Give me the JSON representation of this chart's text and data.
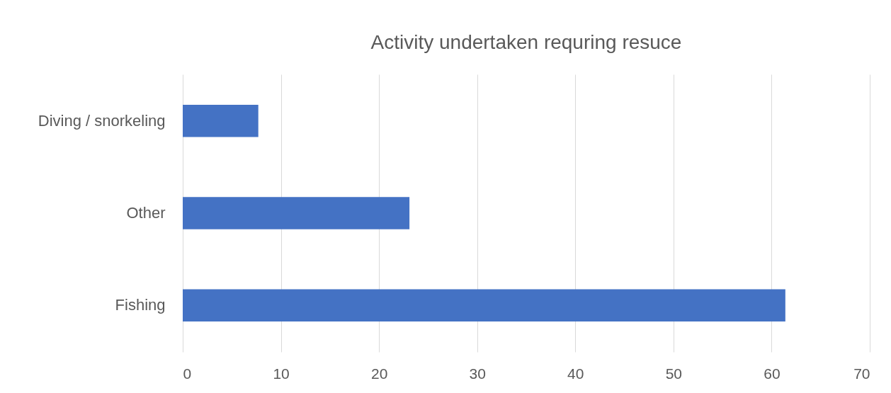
{
  "chart_data": {
    "type": "bar",
    "orientation": "horizontal",
    "title": "Activity undertaken requring resuce",
    "categories": [
      "Diving / snorkeling",
      "Other",
      "Fishing"
    ],
    "values": [
      7.7,
      23.1,
      61.4
    ],
    "color": "#4472c4",
    "xlim": [
      0,
      70
    ],
    "xticks": [
      0,
      10,
      20,
      30,
      40,
      50,
      60,
      70
    ],
    "grid": "x"
  }
}
